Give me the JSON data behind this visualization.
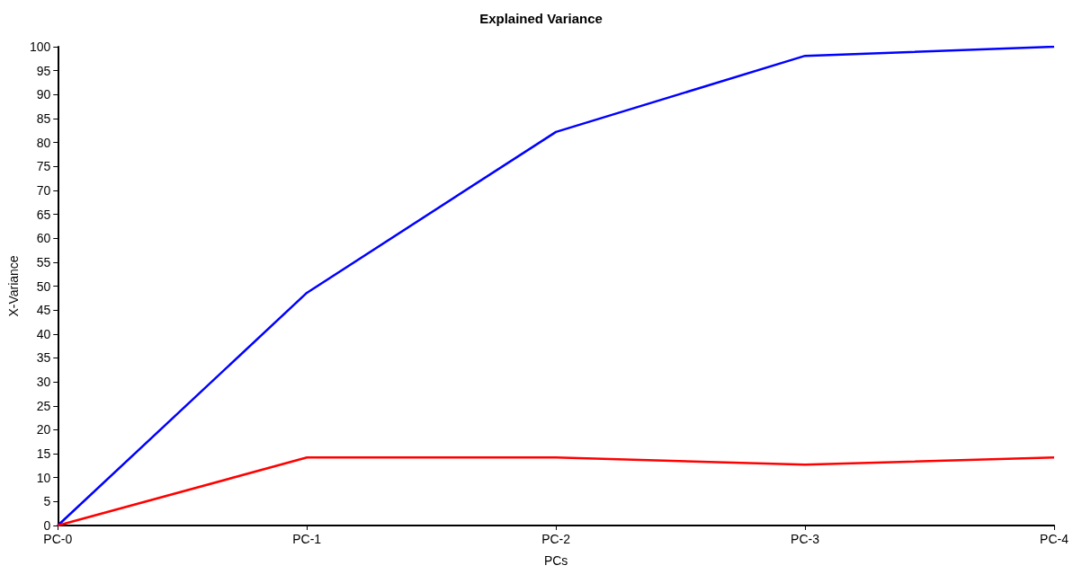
{
  "chart_data": {
    "type": "line",
    "title": "Explained Variance",
    "xlabel": "PCs",
    "ylabel": "X-Variance",
    "categories": [
      "PC-0",
      "PC-1",
      "PC-2",
      "PC-3",
      "PC-4"
    ],
    "series": [
      {
        "color": "#0000ff",
        "values": [
          0,
          48.6,
          82.2,
          98.1,
          100
        ]
      },
      {
        "color": "#ff0000",
        "values": [
          0,
          14.2,
          14.2,
          12.7,
          14.2
        ]
      }
    ],
    "ylim": [
      0,
      100
    ],
    "yticks": [
      0,
      5,
      10,
      15,
      20,
      25,
      30,
      35,
      40,
      45,
      50,
      55,
      60,
      65,
      70,
      75,
      80,
      85,
      90,
      95,
      100
    ],
    "grid": false,
    "marker": "none",
    "line_style": "solid"
  }
}
